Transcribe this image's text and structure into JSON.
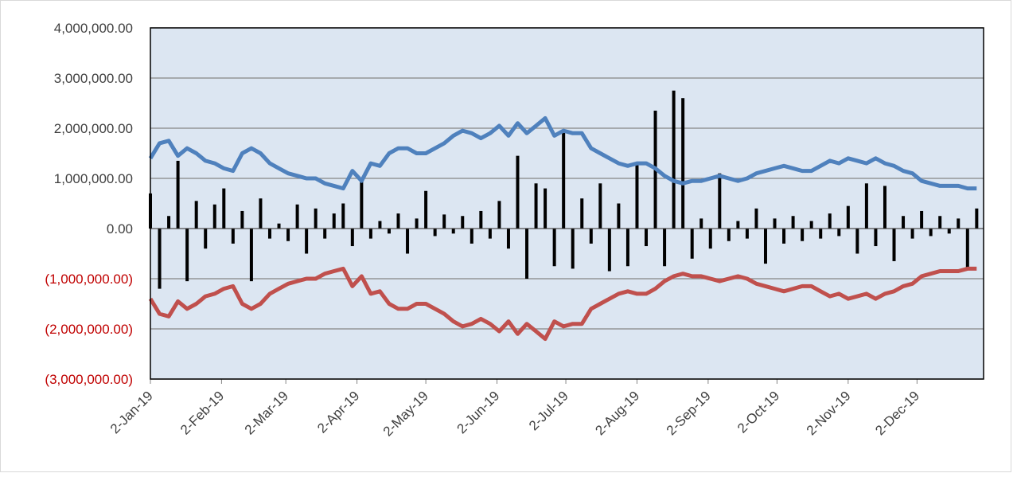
{
  "chart_data": {
    "type": "bar",
    "x": [
      "2019-01-02",
      "2019-01-06",
      "2019-01-10",
      "2019-01-14",
      "2019-01-18",
      "2019-01-22",
      "2019-01-26",
      "2019-01-30",
      "2019-02-03",
      "2019-02-07",
      "2019-02-11",
      "2019-02-15",
      "2019-02-19",
      "2019-02-23",
      "2019-02-27",
      "2019-03-03",
      "2019-03-07",
      "2019-03-11",
      "2019-03-15",
      "2019-03-19",
      "2019-03-23",
      "2019-03-27",
      "2019-03-31",
      "2019-04-04",
      "2019-04-08",
      "2019-04-12",
      "2019-04-16",
      "2019-04-20",
      "2019-04-24",
      "2019-04-28",
      "2019-05-02",
      "2019-05-06",
      "2019-05-10",
      "2019-05-14",
      "2019-05-18",
      "2019-05-22",
      "2019-05-26",
      "2019-05-30",
      "2019-06-03",
      "2019-06-07",
      "2019-06-11",
      "2019-06-15",
      "2019-06-19",
      "2019-06-23",
      "2019-06-27",
      "2019-07-01",
      "2019-07-05",
      "2019-07-09",
      "2019-07-13",
      "2019-07-17",
      "2019-07-21",
      "2019-07-25",
      "2019-07-29",
      "2019-08-02",
      "2019-08-06",
      "2019-08-10",
      "2019-08-14",
      "2019-08-18",
      "2019-08-22",
      "2019-08-26",
      "2019-08-30",
      "2019-09-03",
      "2019-09-07",
      "2019-09-11",
      "2019-09-15",
      "2019-09-19",
      "2019-09-23",
      "2019-09-27",
      "2019-10-01",
      "2019-10-05",
      "2019-10-09",
      "2019-10-13",
      "2019-10-17",
      "2019-10-21",
      "2019-10-25",
      "2019-10-29",
      "2019-11-02",
      "2019-11-06",
      "2019-11-10",
      "2019-11-14",
      "2019-11-18",
      "2019-11-22",
      "2019-11-26",
      "2019-11-30",
      "2019-12-04",
      "2019-12-08",
      "2019-12-12",
      "2019-12-16",
      "2019-12-20",
      "2019-12-24",
      "2019-12-28"
    ],
    "series": [
      {
        "type": "bar",
        "color": "#000000",
        "values": [
          700000,
          -1200000,
          250000,
          1350000,
          -1050000,
          550000,
          -400000,
          480000,
          800000,
          -300000,
          350000,
          -1050000,
          600000,
          -200000,
          100000,
          -250000,
          480000,
          -500000,
          400000,
          -200000,
          300000,
          500000,
          -350000,
          1000000,
          -200000,
          150000,
          -100000,
          300000,
          -500000,
          200000,
          750000,
          -150000,
          280000,
          -100000,
          250000,
          -300000,
          350000,
          -200000,
          550000,
          -400000,
          1450000,
          -1000000,
          900000,
          800000,
          -750000,
          1950000,
          -800000,
          600000,
          -300000,
          900000,
          -850000,
          500000,
          -750000,
          1300000,
          -350000,
          2350000,
          -750000,
          2750000,
          2600000,
          -600000,
          200000,
          -400000,
          1100000,
          -250000,
          150000,
          -200000,
          400000,
          -700000,
          200000,
          -300000,
          250000,
          -250000,
          150000,
          -200000,
          300000,
          -150000,
          450000,
          -500000,
          900000,
          -350000,
          850000,
          -650000,
          250000,
          -200000,
          350000,
          -150000,
          250000,
          -100000,
          200000,
          -800000,
          400000
        ]
      },
      {
        "type": "line",
        "color": "#4f81bd",
        "values": [
          1400000,
          1700000,
          1750000,
          1450000,
          1600000,
          1500000,
          1350000,
          1300000,
          1200000,
          1150000,
          1500000,
          1600000,
          1500000,
          1300000,
          1200000,
          1100000,
          1050000,
          1000000,
          1000000,
          900000,
          850000,
          800000,
          1150000,
          950000,
          1300000,
          1250000,
          1500000,
          1600000,
          1600000,
          1500000,
          1500000,
          1600000,
          1700000,
          1850000,
          1950000,
          1900000,
          1800000,
          1900000,
          2050000,
          1850000,
          2100000,
          1900000,
          2050000,
          2200000,
          1850000,
          1950000,
          1900000,
          1900000,
          1600000,
          1500000,
          1400000,
          1300000,
          1250000,
          1300000,
          1300000,
          1200000,
          1050000,
          950000,
          900000,
          950000,
          950000,
          1000000,
          1050000,
          1000000,
          950000,
          1000000,
          1100000,
          1150000,
          1200000,
          1250000,
          1200000,
          1150000,
          1150000,
          1250000,
          1350000,
          1300000,
          1400000,
          1350000,
          1300000,
          1400000,
          1300000,
          1250000,
          1150000,
          1100000,
          950000,
          900000,
          850000,
          850000,
          850000,
          800000,
          800000
        ]
      },
      {
        "type": "line",
        "color": "#c0504d",
        "values": [
          -1400000,
          -1700000,
          -1750000,
          -1450000,
          -1600000,
          -1500000,
          -1350000,
          -1300000,
          -1200000,
          -1150000,
          -1500000,
          -1600000,
          -1500000,
          -1300000,
          -1200000,
          -1100000,
          -1050000,
          -1000000,
          -1000000,
          -900000,
          -850000,
          -800000,
          -1150000,
          -950000,
          -1300000,
          -1250000,
          -1500000,
          -1600000,
          -1600000,
          -1500000,
          -1500000,
          -1600000,
          -1700000,
          -1850000,
          -1950000,
          -1900000,
          -1800000,
          -1900000,
          -2050000,
          -1850000,
          -2100000,
          -1900000,
          -2050000,
          -2200000,
          -1850000,
          -1950000,
          -1900000,
          -1900000,
          -1600000,
          -1500000,
          -1400000,
          -1300000,
          -1250000,
          -1300000,
          -1300000,
          -1200000,
          -1050000,
          -950000,
          -900000,
          -950000,
          -950000,
          -1000000,
          -1050000,
          -1000000,
          -950000,
          -1000000,
          -1100000,
          -1150000,
          -1200000,
          -1250000,
          -1200000,
          -1150000,
          -1150000,
          -1250000,
          -1350000,
          -1300000,
          -1400000,
          -1350000,
          -1300000,
          -1400000,
          -1300000,
          -1250000,
          -1150000,
          -1100000,
          -950000,
          -900000,
          -850000,
          -850000,
          -850000,
          -800000,
          -800000
        ]
      }
    ],
    "xlim": [
      "2019-01-02",
      "2019-12-31"
    ],
    "xticks": [
      {
        "value": "2019-01-02",
        "label": "2-Jan-19"
      },
      {
        "value": "2019-02-02",
        "label": "2-Feb-19"
      },
      {
        "value": "2019-03-02",
        "label": "2-Mar-19"
      },
      {
        "value": "2019-04-02",
        "label": "2-Apr-19"
      },
      {
        "value": "2019-05-02",
        "label": "2-May-19"
      },
      {
        "value": "2019-06-02",
        "label": "2-Jun-19"
      },
      {
        "value": "2019-07-02",
        "label": "2-Jul-19"
      },
      {
        "value": "2019-08-02",
        "label": "2-Aug-19"
      },
      {
        "value": "2019-09-02",
        "label": "2-Sep-19"
      },
      {
        "value": "2019-10-02",
        "label": "2-Oct-19"
      },
      {
        "value": "2019-11-02",
        "label": "2-Nov-19"
      },
      {
        "value": "2019-12-02",
        "label": "2-Dec-19"
      }
    ],
    "ylim": [
      -3000000,
      4000000
    ],
    "yticks": [
      {
        "value": -3000000,
        "label": "(3,000,000.00)"
      },
      {
        "value": -2000000,
        "label": "(2,000,000.00)"
      },
      {
        "value": -1000000,
        "label": "(1,000,000.00)"
      },
      {
        "value": 0,
        "label": "0.00"
      },
      {
        "value": 1000000,
        "label": "1,000,000.00"
      },
      {
        "value": 2000000,
        "label": "2,000,000.00"
      },
      {
        "value": 3000000,
        "label": "3,000,000.00"
      },
      {
        "value": 4000000,
        "label": "4,000,000.00"
      }
    ],
    "negative_tick_color": "#c00000",
    "grid": true,
    "plot_background": "#dce6f2"
  }
}
